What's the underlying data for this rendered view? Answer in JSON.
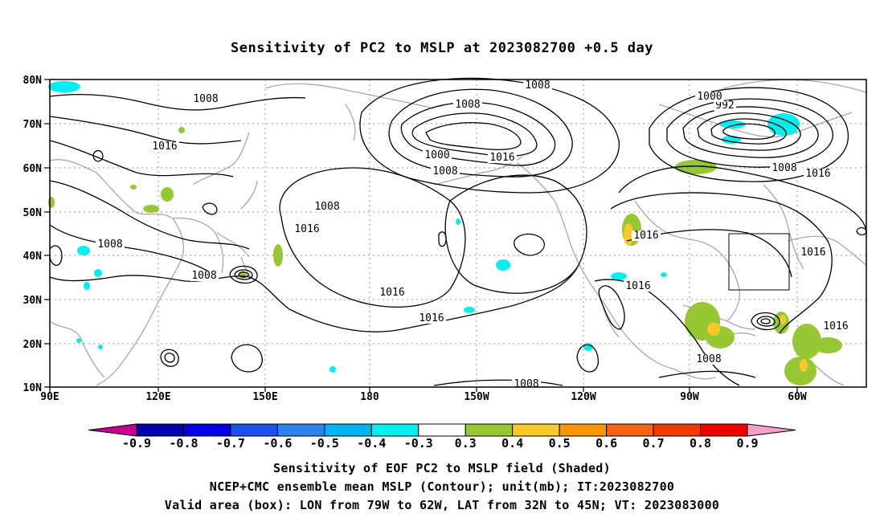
{
  "title": "Sensitivity of PC2 to MSLP at 2023082700 +0.5 day",
  "map": {
    "lat_labels": [
      "80N",
      "70N",
      "60N",
      "50N",
      "40N",
      "30N",
      "20N",
      "10N"
    ],
    "lon_labels": [
      "90E",
      "120E",
      "150E",
      "180",
      "150W",
      "120W",
      "90W",
      "60W"
    ],
    "contour_labels": [
      "1016",
      "1008",
      "1008",
      "1000",
      "992",
      "1008",
      "1016",
      "1016",
      "1008",
      "1000",
      "1008",
      "1016",
      "1008",
      "1016",
      "1008",
      "1016",
      "1008",
      "1016",
      "1016",
      "1016",
      "1016",
      "1008",
      "1008"
    ],
    "box_label": "valid-area-box"
  },
  "colorbar": {
    "colors": [
      "#c8008c",
      "#0000aa",
      "#0000e6",
      "#1e50f0",
      "#2882f0",
      "#00b4f0",
      "#00f0f0",
      "#ffffff",
      "#96c832",
      "#fac828",
      "#fa9600",
      "#f56414",
      "#f03c00",
      "#f00000",
      "#f5a0c8"
    ],
    "labels": [
      "-0.9",
      "-0.8",
      "-0.7",
      "-0.6",
      "-0.5",
      "-0.4",
      "-0.3",
      "0.3",
      "0.4",
      "0.5",
      "0.6",
      "0.7",
      "0.8",
      "0.9"
    ]
  },
  "captions": {
    "line1": "Sensitivity of EOF PC2 to MSLP field (Shaded)",
    "line2": "NCEP+CMC ensemble mean MSLP (Contour); unit(mb); IT:2023082700",
    "line3": "Valid area (box): LON from 79W to 62W, LAT from 32N to 45N; VT: 2023083000"
  }
}
